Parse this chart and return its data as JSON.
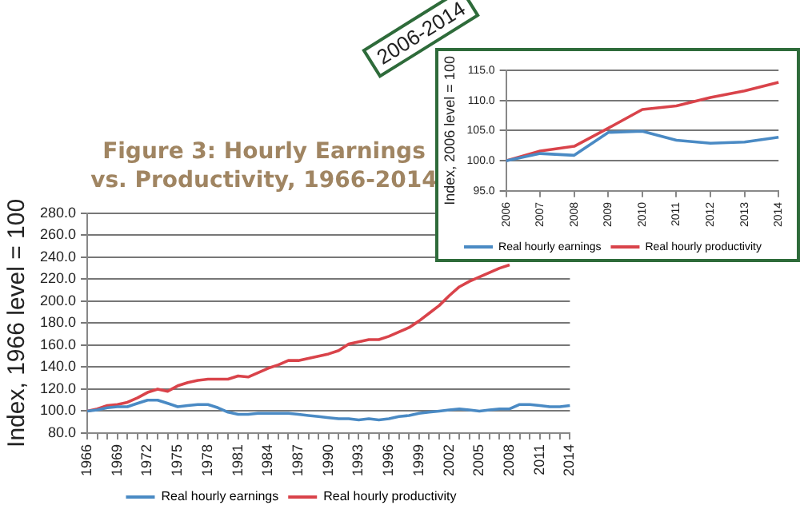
{
  "chart_data": [
    {
      "type": "line",
      "title": "Figure 3: Hourly Earnings vs. Productivity, 1966-2014",
      "ylabel": "Index, 1966 level = 100",
      "categories": [
        "1966",
        null,
        null,
        "1969",
        null,
        null,
        "1972",
        null,
        null,
        "1975",
        null,
        null,
        "1978",
        null,
        null,
        "1981",
        null,
        null,
        "1984",
        null,
        null,
        "1987",
        null,
        null,
        "1990",
        null,
        null,
        "1993",
        null,
        null,
        "1996",
        null,
        null,
        "1999",
        null,
        null,
        "2002",
        null,
        null,
        "2005",
        null,
        null,
        "2008",
        null,
        null,
        "2011",
        null,
        null,
        "2014"
      ],
      "series": [
        {
          "name": "Real hourly earnings",
          "color": "#4a8ac4",
          "values": [
            100,
            101,
            103,
            104,
            104,
            107,
            110,
            110,
            107,
            104,
            105,
            106,
            106,
            103,
            99,
            97,
            97,
            98,
            98,
            98,
            98,
            97,
            96,
            95,
            94,
            93,
            93,
            92,
            93,
            92,
            93,
            95,
            96,
            98,
            99,
            100,
            101,
            102,
            101,
            100,
            101,
            102,
            102,
            106,
            106,
            105,
            104,
            104,
            105
          ]
        },
        {
          "name": "Real hourly productivity",
          "color": "#d9434a",
          "values": [
            100,
            102,
            105,
            106,
            108,
            112,
            117,
            120,
            118,
            123,
            126,
            128,
            129,
            129,
            129,
            132,
            131,
            135,
            139,
            142,
            146,
            146,
            148,
            150,
            152,
            155,
            161,
            163,
            165,
            165,
            168,
            172,
            176,
            182,
            189,
            196,
            205,
            213,
            218,
            222,
            226,
            230,
            233,
            null,
            null,
            null,
            null,
            null,
            null
          ]
        }
      ],
      "ylim": [
        80,
        280
      ],
      "yticks": [
        {
          "value": 80,
          "label": "80.0"
        },
        {
          "value": 100,
          "label": "100.0"
        },
        {
          "value": 120,
          "label": "120.0"
        },
        {
          "value": 140,
          "label": "140.0"
        },
        {
          "value": 160,
          "label": "160.0"
        },
        {
          "value": 180,
          "label": "180.0"
        },
        {
          "value": 200,
          "label": "200.0"
        },
        {
          "value": 220,
          "label": "220.0"
        },
        {
          "value": 240,
          "label": "240.0"
        },
        {
          "value": 260,
          "label": "260.0"
        },
        {
          "value": 280,
          "label": "280.0"
        }
      ],
      "grid": "y",
      "legend": "bottom",
      "marker": "none"
    },
    {
      "type": "line",
      "title": "2006-2014",
      "ylabel": "Index, 2006 level = 100",
      "categories": [
        "2006",
        "2007",
        "2008",
        "2009",
        "2010",
        "2011",
        "2012",
        "2013",
        "2014"
      ],
      "series": [
        {
          "name": "Real hourly earnings",
          "color": "#4a8ac4",
          "values": [
            100,
            101.2,
            100.9,
            104.7,
            104.9,
            103.4,
            102.9,
            103.1,
            103.9
          ]
        },
        {
          "name": "Real hourly productivity",
          "color": "#d9434a",
          "values": [
            100,
            101.6,
            102.4,
            105.4,
            108.5,
            109.1,
            110.5,
            111.6,
            113
          ]
        }
      ],
      "ylim": [
        95,
        115
      ],
      "yticks": [
        {
          "value": 95,
          "label": "95.0"
        },
        {
          "value": 100,
          "label": "100.0"
        },
        {
          "value": 105,
          "label": "105.0"
        },
        {
          "value": 110,
          "label": "110.0"
        },
        {
          "value": 115,
          "label": "115.0"
        }
      ],
      "grid": "y",
      "legend": "bottom",
      "marker": "none"
    }
  ]
}
